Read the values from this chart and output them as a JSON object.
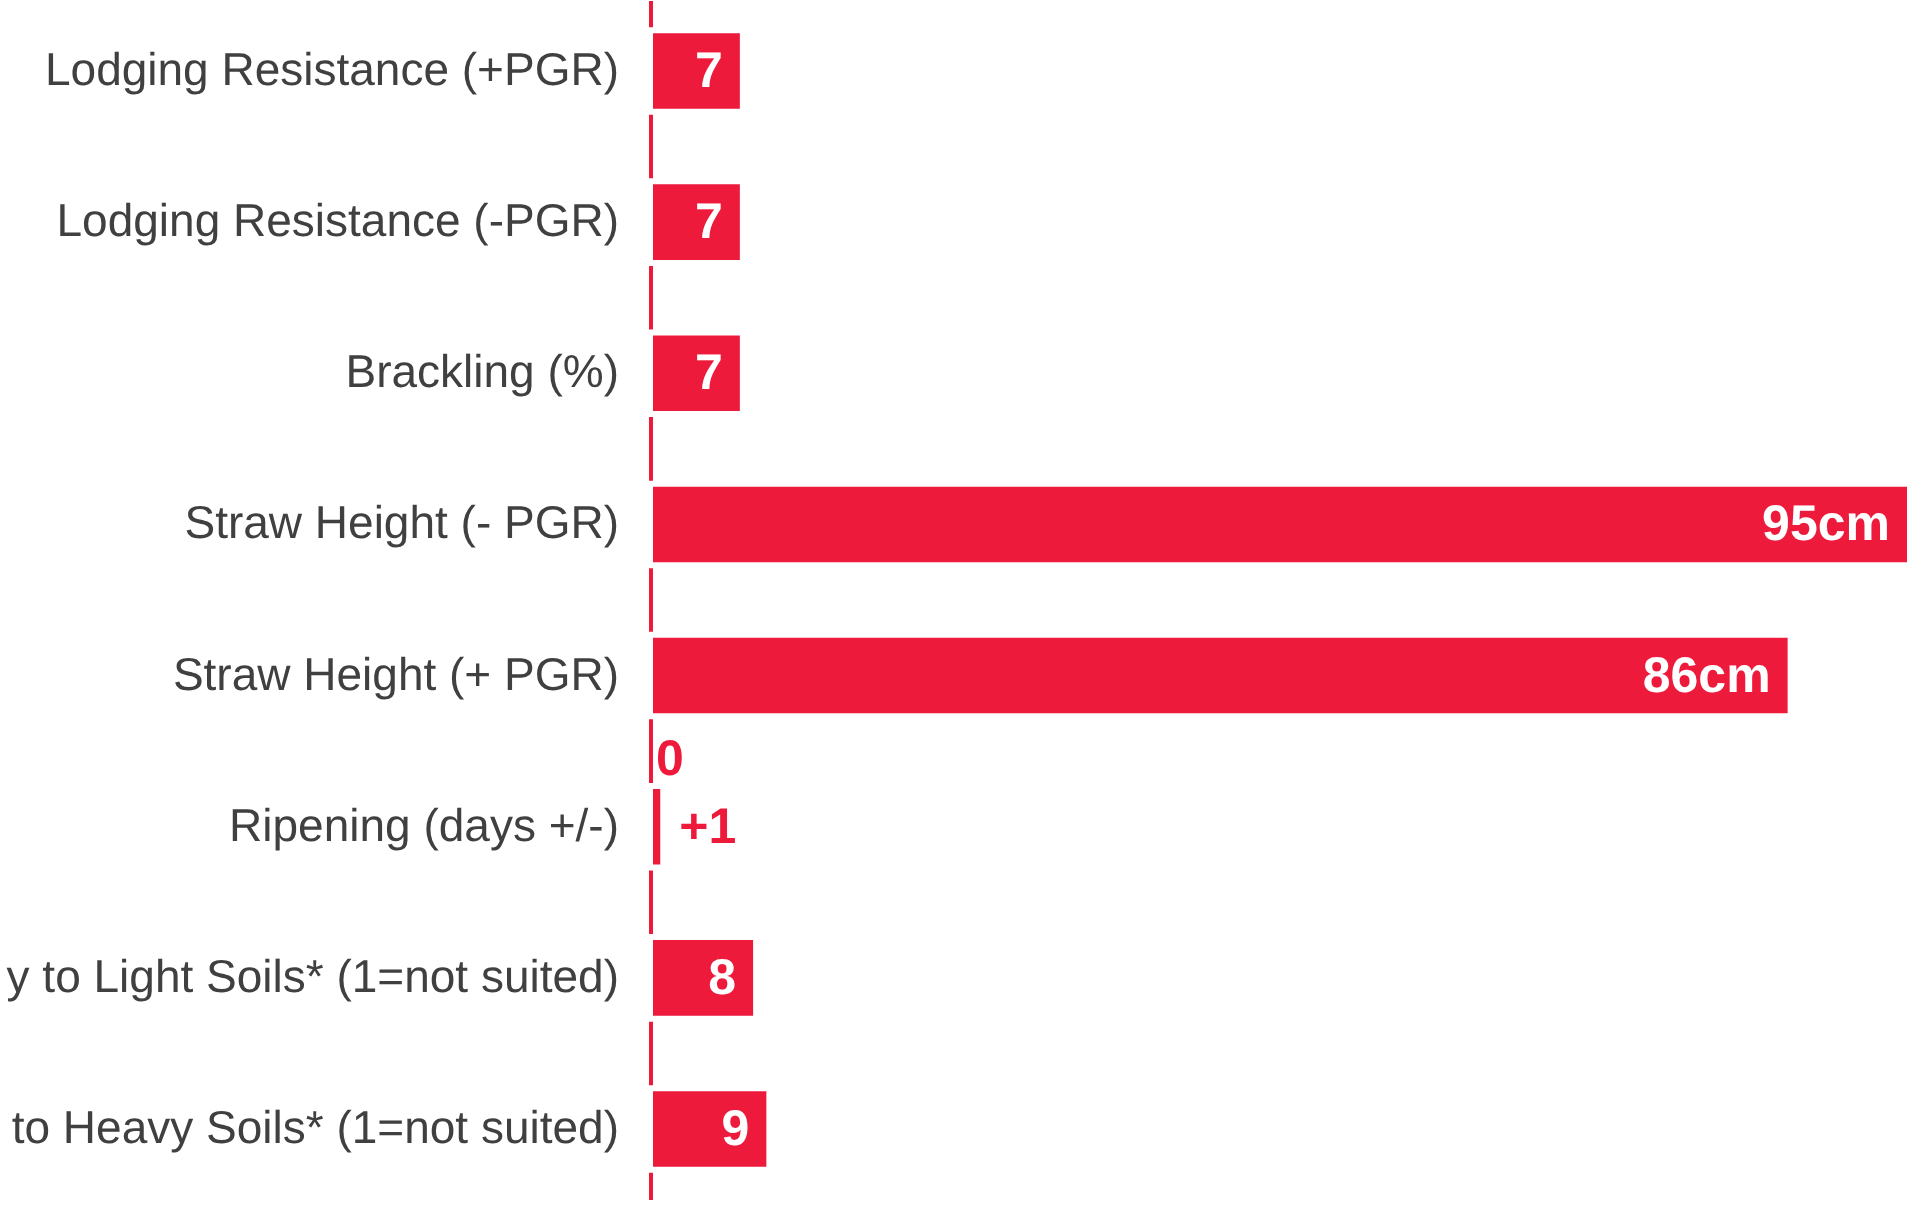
{
  "chart_data": {
    "type": "bar",
    "orientation": "horizontal",
    "tick_labels": "y",
    "categories": [
      "Lodging Resistance (+PGR)",
      "Lodging Resistance (-PGR)",
      "Brackling (%)",
      "Straw Height (- PGR)",
      "Straw Height (+ PGR)",
      "Ripening (days +/-)",
      "y to Light Soils* (1=not suited)",
      "to Heavy Soils* (1=not suited)"
    ],
    "series": [
      {
        "color": "#ee1a3b",
        "values": [
          7,
          7,
          7,
          95,
          86,
          1,
          8,
          9
        ],
        "value_labels": [
          "7",
          "7",
          "7",
          "95cm",
          "86cm",
          "+1",
          "8",
          "9"
        ]
      }
    ],
    "annotations": [
      {
        "text": "0",
        "x": 0,
        "y": "Ripening (days +/-)"
      }
    ]
  }
}
